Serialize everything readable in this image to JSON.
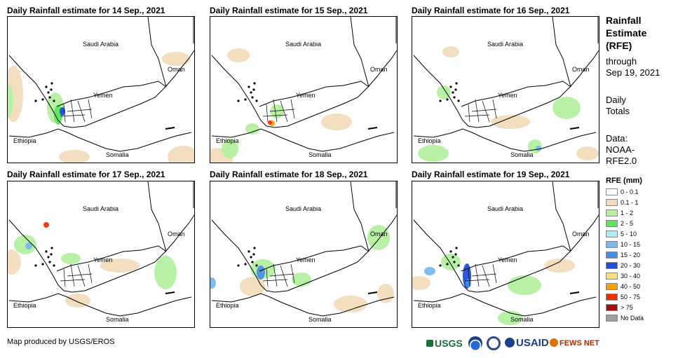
{
  "panels": [
    {
      "title": "Daily Rainfall estimate for 14 Sep., 2021"
    },
    {
      "title": "Daily Rainfall estimate for 15 Sep., 2021"
    },
    {
      "title": "Daily Rainfall estimate for 16 Sep., 2021"
    },
    {
      "title": "Daily Rainfall estimate for 17 Sep., 2021"
    },
    {
      "title": "Daily Rainfall estimate for 18 Sep., 2021"
    },
    {
      "title": "Daily Rainfall estimate for 19 Sep., 2021"
    }
  ],
  "map_labels": {
    "saudi": "Saudi Arabia",
    "oman": "Oman",
    "yemen": "Yemen",
    "ethiopia": "Ethiopia",
    "somalia": "Somalia"
  },
  "sidebar": {
    "title_line1": "Rainfall",
    "title_line2": "Estimate",
    "title_line3": "(RFE)",
    "through": "through",
    "date": "Sep 19, 2021",
    "daily_line1": "Daily",
    "daily_line2": "Totals",
    "data_line1": "Data:",
    "data_line2": "NOAA-",
    "data_line3": "RFE2.0"
  },
  "legend": {
    "title": "RFE (mm)",
    "items": [
      {
        "label": "0 - 0.1",
        "color": "#ffffff"
      },
      {
        "label": "0.1 - 1",
        "color": "#f2dcbd"
      },
      {
        "label": "1 - 2",
        "color": "#b4f0a0"
      },
      {
        "label": "2 - 5",
        "color": "#5ce65c"
      },
      {
        "label": "5 - 10",
        "color": "#b0ecf5"
      },
      {
        "label": "10 - 15",
        "color": "#7ab8ee"
      },
      {
        "label": "15 - 20",
        "color": "#4a90e0"
      },
      {
        "label": "20 - 30",
        "color": "#1f50d8"
      },
      {
        "label": "30 - 40",
        "color": "#f7e07a"
      },
      {
        "label": "40 - 50",
        "color": "#f5a000"
      },
      {
        "label": "50 - 75",
        "color": "#f03000"
      },
      {
        "label": "> 75",
        "color": "#a01010"
      },
      {
        "label": "No Data",
        "color": "#a0a0a0"
      }
    ]
  },
  "credit": "Map produced by USGS/EROS",
  "logos": {
    "usgs": "USGS",
    "usaid": "USAID",
    "fewsnet": "FEWS NET"
  }
}
